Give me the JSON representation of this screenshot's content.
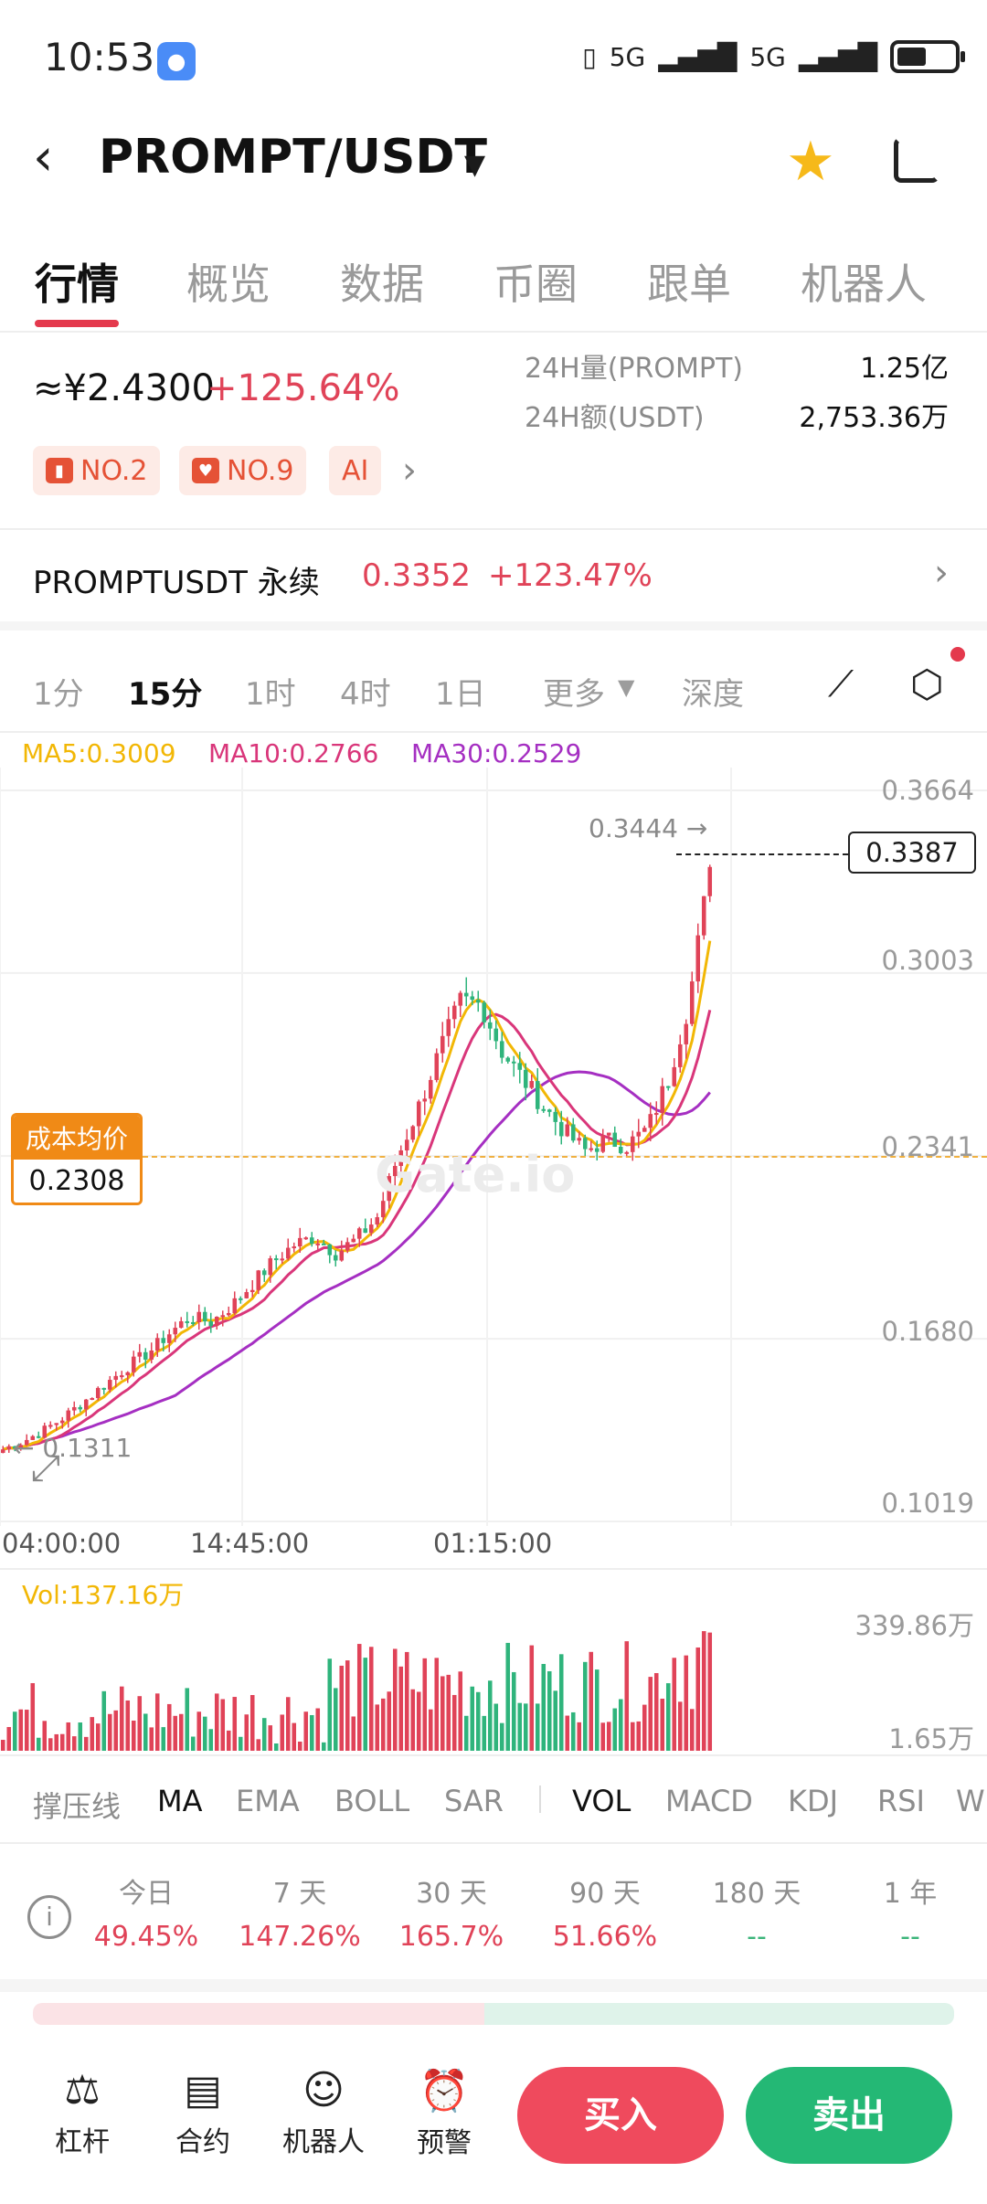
{
  "status_bar": {
    "time": "10:53",
    "signal_1": "5G",
    "signal_2": "5G"
  },
  "header": {
    "pair": "PROMPT/USDT"
  },
  "tabs": [
    "行情",
    "概览",
    "数据",
    "币圈",
    "跟单",
    "机器人"
  ],
  "price": {
    "cny": "≈¥2.4300",
    "change": "+125.64%",
    "vol_label": "24H量(PROMPT)",
    "vol_value": "1.25亿",
    "amt_label": "24H额(USDT)",
    "amt_value": "2,753.36万"
  },
  "badges": [
    {
      "label": "NO.2",
      "icon": "chart-icon"
    },
    {
      "label": "NO.9",
      "icon": "heart-icon"
    },
    {
      "label": "AI"
    }
  ],
  "perpetual": {
    "name": "PROMPTUSDT 永续",
    "price": "0.3352",
    "change": "+123.47%"
  },
  "timeframes": [
    "1分",
    "15分",
    "1时",
    "4时",
    "1日",
    "更多",
    "深度"
  ],
  "active_timeframe": "15分",
  "ma": {
    "ma5": "MA5:0.3009",
    "ma10": "MA10:0.2766",
    "ma30": "MA30:0.2529"
  },
  "colors": {
    "up": "#e04358",
    "down": "#2fb47c",
    "ma5": "#f2b705",
    "ma10": "#d9367a",
    "ma30": "#a52fc2",
    "accent": "#e4394d"
  },
  "chart": {
    "y_ticks": [
      "0.3664",
      "0.3003",
      "0.2341",
      "0.1680",
      "0.1019"
    ],
    "x_ticks": [
      "04:00:00",
      "14:45:00",
      "01:15:00"
    ],
    "high_label": "0.3444 →",
    "low_label": "← 0.1311",
    "last_price": "0.3387",
    "cost_title": "成本均价",
    "cost_value": "0.2308",
    "watermark": "Gate.io"
  },
  "volume": {
    "label": "Vol:137.16万",
    "max": "339.86万",
    "min": "1.65万"
  },
  "indicators": [
    "撑压线",
    "MA",
    "EMA",
    "BOLL",
    "SAR",
    "VOL",
    "MACD",
    "KDJ",
    "RSI",
    "W"
  ],
  "performance": [
    {
      "period": "今日",
      "value": "49.45%"
    },
    {
      "period": "7 天",
      "value": "147.26%"
    },
    {
      "period": "30 天",
      "value": "165.7%"
    },
    {
      "period": "90 天",
      "value": "51.66%"
    },
    {
      "period": "180 天",
      "value": "--"
    },
    {
      "period": "1 年",
      "value": "--"
    }
  ],
  "bottom_nav": [
    "杠杆",
    "合约",
    "机器人",
    "预警"
  ],
  "buttons": {
    "buy": "买入",
    "sell": "卖出"
  },
  "chart_data": {
    "type": "candlestick",
    "title": "",
    "y_range": [
      0.1019,
      0.3664
    ],
    "close_approx": [
      0.128,
      0.131,
      0.135,
      0.14,
      0.146,
      0.152,
      0.158,
      0.163,
      0.17,
      0.176,
      0.174,
      0.18,
      0.188,
      0.196,
      0.202,
      0.205,
      0.199,
      0.204,
      0.212,
      0.234,
      0.252,
      0.272,
      0.29,
      0.289,
      0.272,
      0.262,
      0.252,
      0.243,
      0.236,
      0.24,
      0.238,
      0.244,
      0.262,
      0.29,
      0.3387
    ],
    "ma5_last": 0.3009,
    "ma10_last": 0.2766,
    "ma30_last": 0.2529,
    "high": 0.3444,
    "low": 0.1311,
    "last": 0.3387
  }
}
